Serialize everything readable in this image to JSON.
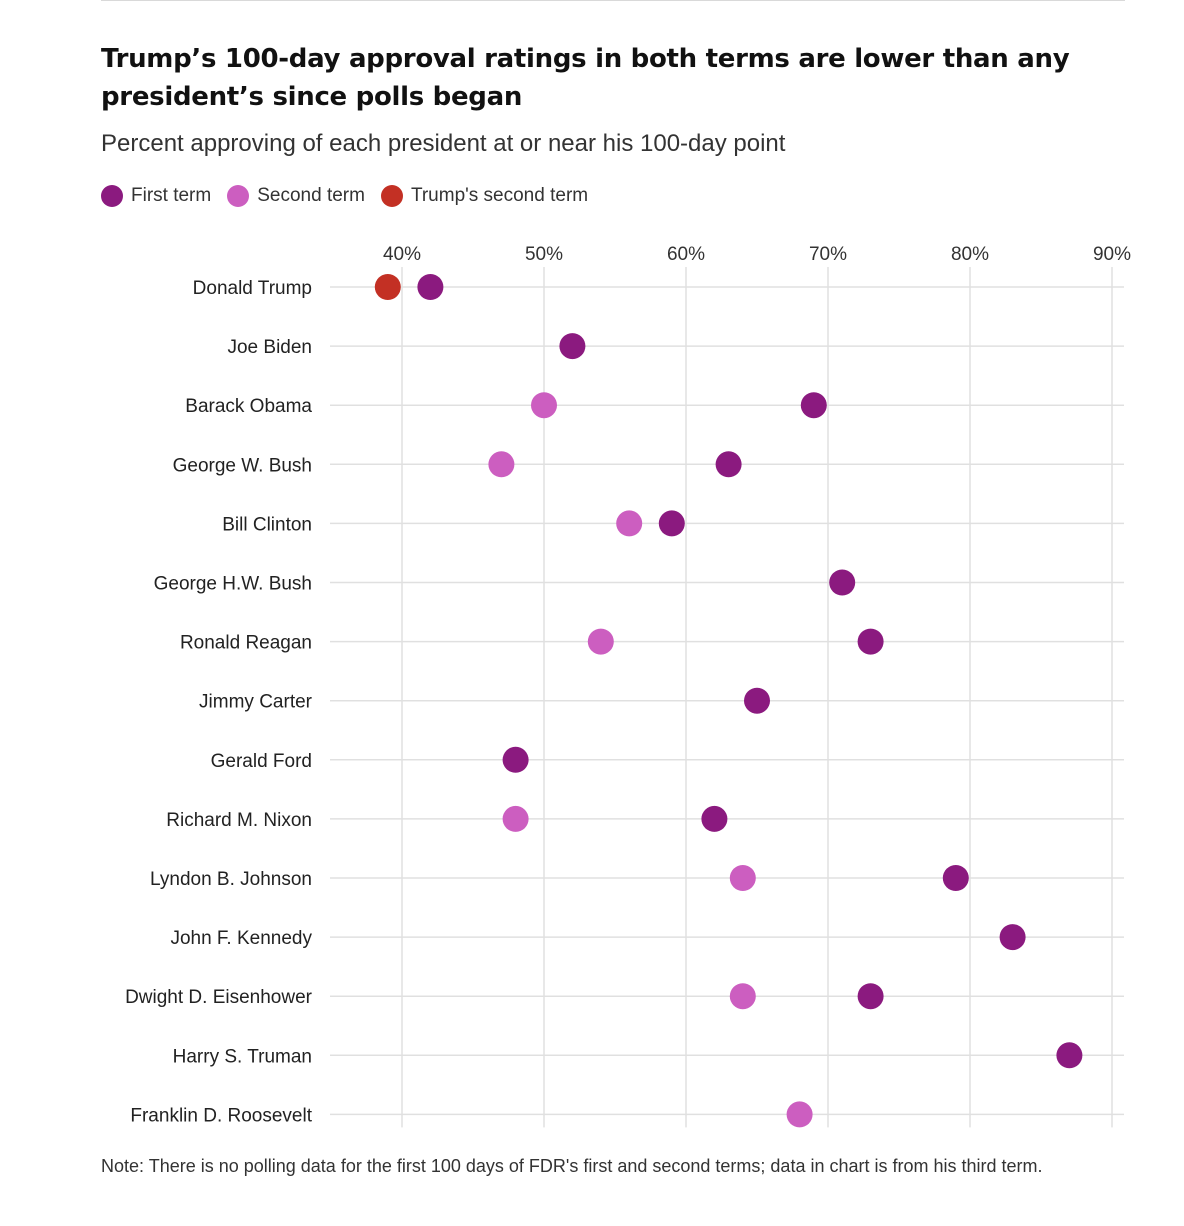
{
  "chart_data": {
    "type": "scatter",
    "title": "Trump’s 100-day approval ratings in both terms are lower than any president’s since polls began",
    "subtitle": "Percent approving of each president at or near his 100-day point",
    "note": "Note: There is no polling data for the first 100 days of FDR's first and second terms; data in chart is from his third term.",
    "xlim": [
      36,
      92
    ],
    "xticks": [
      40,
      50,
      60,
      70,
      80,
      90
    ],
    "xtick_labels": [
      "40%",
      "50%",
      "60%",
      "70%",
      "80%",
      "90%"
    ],
    "categories": [
      "Donald Trump",
      "Joe Biden",
      "Barack Obama",
      "George W. Bush",
      "Bill Clinton",
      "George H.W. Bush",
      "Ronald Reagan",
      "Jimmy Carter",
      "Gerald Ford",
      "Richard M. Nixon",
      "Lyndon B. Johnson",
      "John F. Kennedy",
      "Dwight D. Eisenhower",
      "Harry S. Truman",
      "Franklin D. Roosevelt"
    ],
    "legend": [
      "First term",
      "Second term",
      "Trump's second term"
    ],
    "series": [
      {
        "name": "First term",
        "color": "#8b1a7f",
        "values": [
          42,
          52,
          69,
          63,
          59,
          71,
          73,
          65,
          48,
          62,
          79,
          83,
          73,
          87,
          null
        ]
      },
      {
        "name": "Second term",
        "color": "#cc5ec0",
        "values": [
          null,
          null,
          50,
          47,
          56,
          null,
          54,
          null,
          null,
          48,
          64,
          null,
          64,
          null,
          68
        ]
      },
      {
        "name": "Trump's second term",
        "color": "#c33024",
        "values": [
          39,
          null,
          null,
          null,
          null,
          null,
          null,
          null,
          null,
          null,
          null,
          null,
          null,
          null,
          null
        ]
      }
    ]
  }
}
